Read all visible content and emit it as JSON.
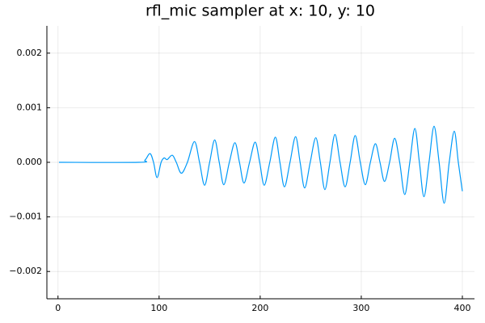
{
  "chart_data": {
    "type": "line",
    "title": "rfl_mic sampler at x: 10, y: 10",
    "x": [
      1,
      80,
      86,
      91,
      94.5,
      98,
      102,
      105,
      108,
      113,
      117,
      122,
      128,
      135,
      140,
      145,
      150,
      155,
      159.5,
      164,
      169.5,
      175,
      179.5,
      184,
      189.5,
      195,
      199.5,
      204,
      209.5,
      215,
      219.5,
      224,
      229.5,
      235,
      239.5,
      244,
      249.5,
      255,
      259.5,
      264,
      269,
      274,
      279,
      284,
      289,
      294,
      299,
      304,
      309,
      314,
      318.5,
      323,
      328,
      333,
      338,
      343,
      348,
      353,
      357.5,
      362,
      367,
      372,
      377,
      382,
      387,
      392,
      396,
      400
    ],
    "series": [
      {
        "color": "#009af9",
        "values": [
          0,
          0,
          4e-05,
          0.00016,
          0,
          -0.00028,
          0,
          8e-05,
          5e-05,
          0.00013,
          0,
          -0.0002,
          0,
          0.00038,
          0,
          -0.00042,
          0,
          0.00041,
          0,
          -0.00041,
          0,
          0.00036,
          0,
          -0.00038,
          0,
          0.00037,
          0,
          -0.00042,
          0,
          0.00046,
          0,
          -0.00045,
          0,
          0.00047,
          0,
          -0.00047,
          0,
          0.00045,
          0,
          -0.0005,
          0,
          0.00051,
          0,
          -0.00045,
          0,
          0.00049,
          0,
          -0.00041,
          0,
          0.00034,
          0,
          -0.00035,
          0,
          0.00044,
          0,
          -0.00059,
          0,
          0.00062,
          0,
          -0.00063,
          0,
          0.00066,
          0,
          -0.00075,
          0,
          0.00057,
          0,
          -0.00053
        ]
      }
    ],
    "xlim": [
      -11,
      412
    ],
    "ylim": [
      -0.0025,
      0.0025
    ],
    "xticks": [
      0,
      100,
      200,
      300,
      400
    ],
    "yticks": [
      {
        "value": -0.002,
        "label": "−0.002"
      },
      {
        "value": -0.001,
        "label": "−0.001"
      },
      {
        "value": 0,
        "label": "0.000"
      },
      {
        "value": 0.001,
        "label": "0.001"
      },
      {
        "value": 0.002,
        "label": "0.002"
      }
    ],
    "grid": true
  }
}
